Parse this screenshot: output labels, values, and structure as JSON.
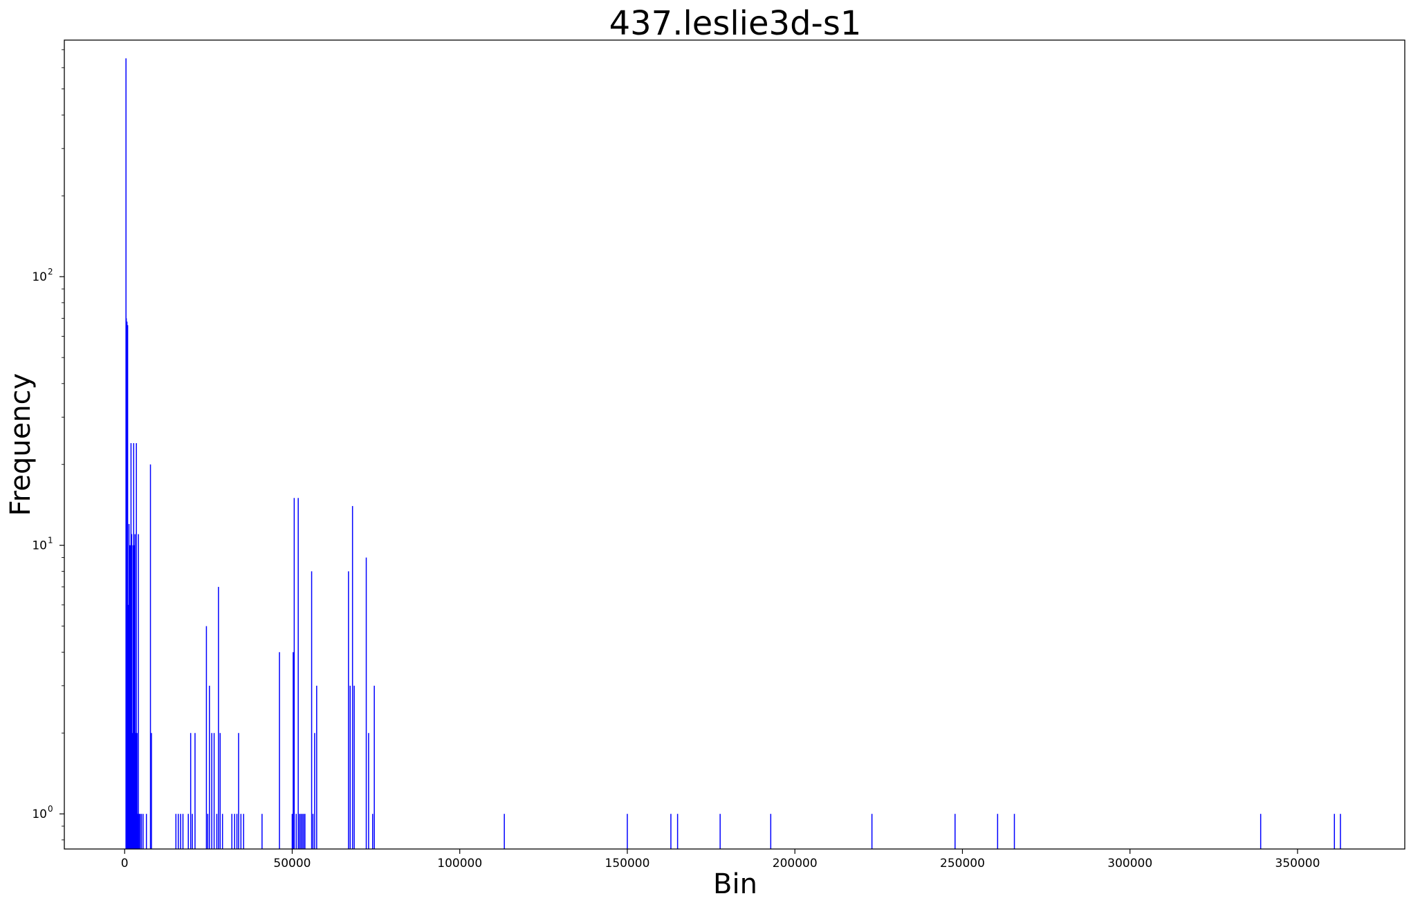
{
  "chart_data": {
    "type": "bar",
    "title": "437.leslie3d-s1",
    "xlabel": "Bin",
    "ylabel": "Frequency",
    "yscale": "log",
    "xlim": [
      -18000,
      382000
    ],
    "ylim": [
      0.74,
      760
    ],
    "xticks": [
      0,
      50000,
      100000,
      150000,
      200000,
      250000,
      300000,
      350000
    ],
    "xtick_labels": [
      "0",
      "50000",
      "100000",
      "150000",
      "200000",
      "250000",
      "300000",
      "350000"
    ],
    "yticks": [
      1,
      10,
      100
    ],
    "ytick_labels": [
      {
        "base": "10",
        "exp": "0"
      },
      {
        "base": "10",
        "exp": "1"
      },
      {
        "base": "10",
        "exp": "2"
      }
    ],
    "bar_color": "#0000ff",
    "grid": false,
    "x": [
      400,
      500,
      700,
      900,
      1100,
      1300,
      1500,
      1700,
      1900,
      2100,
      2300,
      2500,
      2700,
      2900,
      3100,
      3300,
      3500,
      3700,
      3900,
      4100,
      4300,
      4600,
      5000,
      5500,
      6500,
      7700,
      8000,
      15300,
      16000,
      16700,
      17400,
      19000,
      19700,
      20200,
      21000,
      24400,
      24800,
      25300,
      26000,
      26700,
      27500,
      28000,
      28500,
      29200,
      32000,
      32800,
      33500,
      34000,
      34700,
      35500,
      41000,
      46200,
      50000,
      50300,
      50600,
      51200,
      51800,
      52200,
      52600,
      53000,
      53400,
      53800,
      55800,
      56200,
      56700,
      57300,
      66800,
      67300,
      68000,
      68500,
      72100,
      72800,
      74000,
      74500,
      113300,
      150000,
      163000,
      165000,
      177700,
      192800,
      223000,
      247800,
      260500,
      265500,
      339000,
      361000,
      362800
    ],
    "values": [
      650,
      70,
      68,
      66,
      6,
      12,
      10,
      10,
      24,
      11,
      2,
      10,
      24,
      10,
      11,
      2,
      24,
      2,
      1,
      11,
      1,
      1,
      1,
      1,
      1,
      20,
      2,
      1,
      1,
      1,
      1,
      1,
      2,
      1,
      2,
      5,
      1,
      3,
      2,
      2,
      1,
      7,
      2,
      1,
      1,
      1,
      1,
      2,
      1,
      1,
      1,
      4,
      1,
      4,
      15,
      1,
      15,
      1,
      1,
      1,
      1,
      1,
      8,
      1,
      2,
      3,
      8,
      3,
      14,
      3,
      9,
      2,
      1,
      3,
      1,
      1,
      1,
      1,
      1,
      1,
      1,
      1,
      1,
      1,
      1,
      1,
      1
    ]
  }
}
